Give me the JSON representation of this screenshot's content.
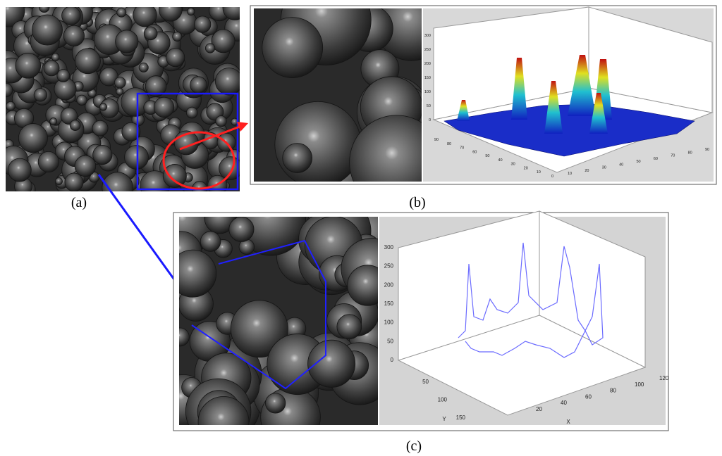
{
  "panels": {
    "a": {
      "caption": "(a)"
    },
    "b": {
      "caption": "(b)",
      "z_ticks": [
        0,
        50,
        100,
        150,
        200,
        250,
        300
      ],
      "x_ticks": [
        90,
        80,
        70,
        60,
        50,
        40,
        30,
        20,
        10,
        0
      ],
      "y_ticks": [
        10,
        20,
        30,
        40,
        50,
        60,
        70,
        80,
        90
      ]
    },
    "c": {
      "caption": "(c)",
      "z_ticks": [
        0,
        50,
        100,
        150,
        200,
        250,
        300
      ],
      "y_ticks": [
        50,
        100,
        150
      ],
      "x_ticks": [
        20,
        40,
        60,
        80,
        100,
        120
      ],
      "y_label": "Y",
      "x_label": "X"
    }
  }
}
